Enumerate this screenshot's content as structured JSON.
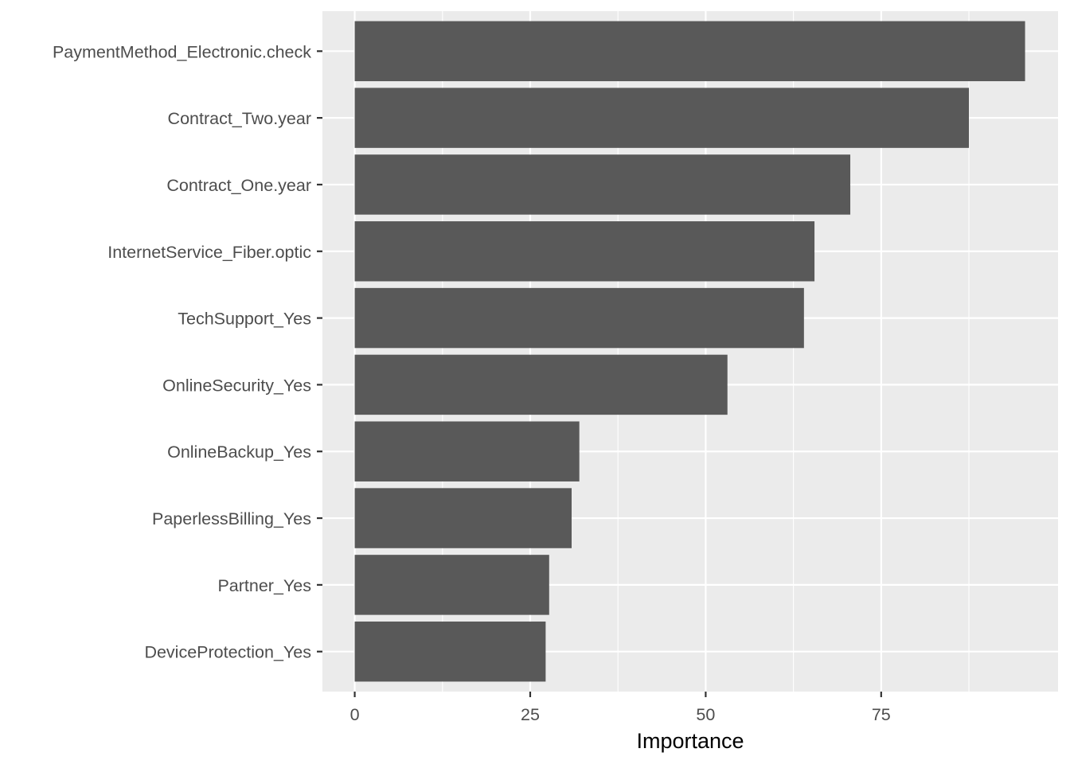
{
  "chart_data": {
    "type": "bar",
    "orientation": "horizontal",
    "categories": [
      "PaymentMethod_Electronic.check",
      "Contract_Two.year",
      "Contract_One.year",
      "InternetService_Fiber.optic",
      "TechSupport_Yes",
      "OnlineSecurity_Yes",
      "OnlineBackup_Yes",
      "PaperlessBilling_Yes",
      "Partner_Yes",
      "DeviceProtection_Yes"
    ],
    "values": [
      95.5,
      87.5,
      70.6,
      65.5,
      64.0,
      53.1,
      32.0,
      30.9,
      27.7,
      27.2
    ],
    "title": "",
    "xlabel": "Importance",
    "ylabel": "",
    "xlim": [
      -4.6,
      100.2
    ],
    "xticks": [
      0,
      25,
      50,
      75
    ],
    "grid": true,
    "legend": "none",
    "colors": {
      "bar": "#595959",
      "panel": "#ebebeb",
      "grid_major": "#ffffff",
      "axis_text": "#4d4d4d",
      "axis_title": "#000000",
      "tick": "#333333"
    }
  }
}
